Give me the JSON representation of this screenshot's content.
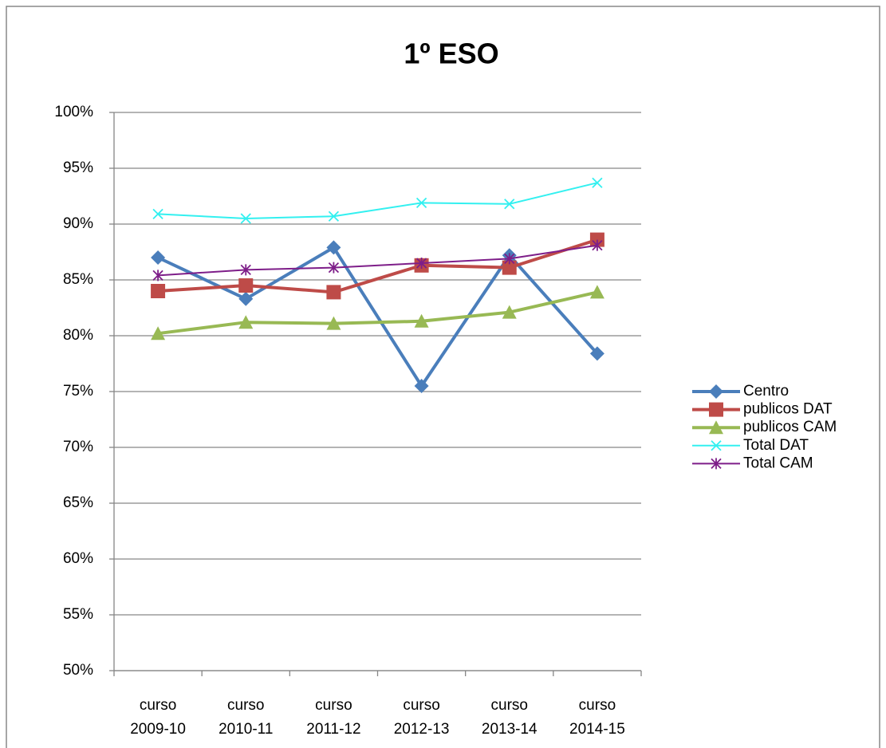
{
  "chart_data": {
    "type": "line",
    "title": "1º ESO",
    "categories": [
      "curso 2009-10",
      "curso 2010-11",
      "curso 2011-12",
      "curso 2012-13",
      "curso 2013-14",
      "curso 2014-15"
    ],
    "series": [
      {
        "name": "Centro",
        "color": "#4a7ebb",
        "marker": "diamond",
        "width": 4,
        "values": [
          87.0,
          83.3,
          87.9,
          75.5,
          87.2,
          78.4
        ]
      },
      {
        "name": "publicos DAT",
        "color": "#be4b48",
        "marker": "square",
        "width": 4,
        "values": [
          84.0,
          84.5,
          83.9,
          86.3,
          86.1,
          88.6
        ]
      },
      {
        "name": "publicos CAM",
        "color": "#98b954",
        "marker": "triangle",
        "width": 4,
        "values": [
          80.2,
          81.2,
          81.1,
          81.3,
          82.1,
          83.9
        ]
      },
      {
        "name": "Total DAT",
        "color": "#33f0f0",
        "marker": "x",
        "width": 2,
        "values": [
          90.9,
          90.5,
          90.7,
          91.9,
          91.8,
          93.7
        ]
      },
      {
        "name": "Total CAM",
        "color": "#7e1e89",
        "marker": "star",
        "width": 2,
        "values": [
          85.4,
          85.9,
          86.1,
          86.5,
          86.9,
          88.1
        ]
      }
    ],
    "ylim": [
      50,
      100
    ],
    "yticks": [
      {
        "value": 50,
        "label": "50%"
      },
      {
        "value": 55,
        "label": "55%"
      },
      {
        "value": 60,
        "label": "60%"
      },
      {
        "value": 65,
        "label": "65%"
      },
      {
        "value": 70,
        "label": "70%"
      },
      {
        "value": 75,
        "label": "75%"
      },
      {
        "value": 80,
        "label": "80%"
      },
      {
        "value": 85,
        "label": "85%"
      },
      {
        "value": 90,
        "label": "90%"
      },
      {
        "value": 95,
        "label": "95%"
      },
      {
        "value": 100,
        "label": "100%"
      }
    ],
    "grid": true,
    "legend": "right"
  }
}
